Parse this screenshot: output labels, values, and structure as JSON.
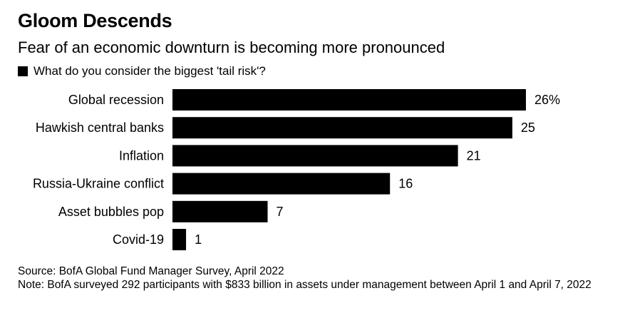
{
  "title": "Gloom Descends",
  "subtitle": "Fear of an economic downturn is becoming more pronounced",
  "legend_label": "What do you consider the biggest 'tail risk'?",
  "footnote": {
    "source": "Source: BofA Global Fund Manager Survey, April 2022",
    "note": "Note: BofA surveyed 292 participants with $833 billion in assets under management between April 1 and April 7, 2022"
  },
  "colors": {
    "bar": "#000000",
    "text": "#000000",
    "background": "#ffffff"
  },
  "chart_data": {
    "type": "bar",
    "orientation": "horizontal",
    "title": "Gloom Descends",
    "subtitle": "Fear of an economic downturn is becoming more pronounced",
    "categories": [
      "Global recession",
      "Hawkish central banks",
      "Inflation",
      "Russia-Ukraine conflict",
      "Asset bubbles pop",
      "Covid-19"
    ],
    "series": [
      {
        "name": "What do you consider the biggest 'tail risk'?",
        "values": [
          26,
          25,
          21,
          16,
          7,
          1
        ]
      }
    ],
    "value_labels": [
      "26%",
      "25",
      "21",
      "16",
      "7",
      "1"
    ],
    "xlim": [
      0,
      26
    ],
    "grid": false,
    "legend_position": "top-left"
  }
}
